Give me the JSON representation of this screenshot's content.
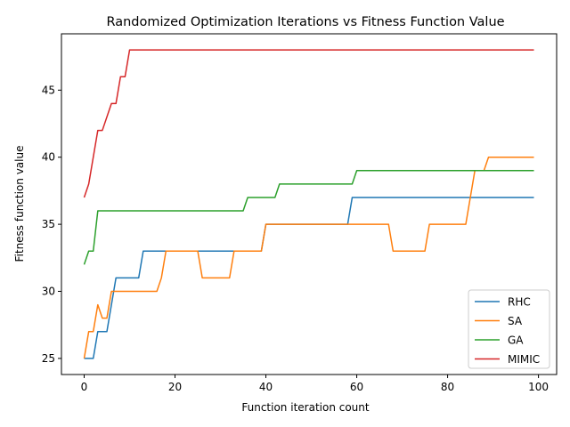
{
  "chart_data": {
    "type": "line",
    "title": "Randomized Optimization Iterations vs Fitness Function Value",
    "xlabel": "Function iteration count",
    "ylabel": "Fitness function value",
    "xlim": [
      -5,
      104
    ],
    "ylim": [
      23.8,
      49.2
    ],
    "xticks": [
      0,
      20,
      40,
      60,
      80,
      100
    ],
    "yticks": [
      25,
      30,
      35,
      40,
      45
    ],
    "grid": false,
    "legend_position": "lower-right",
    "series": [
      {
        "name": "RHC",
        "color": "#1f77b4",
        "points": [
          [
            0,
            25
          ],
          [
            2,
            25
          ],
          [
            3,
            27
          ],
          [
            5,
            27
          ],
          [
            6,
            29
          ],
          [
            7,
            31
          ],
          [
            12,
            31
          ],
          [
            13,
            33
          ],
          [
            39,
            33
          ],
          [
            40,
            35
          ],
          [
            58,
            35
          ],
          [
            59,
            37
          ],
          [
            99,
            37
          ]
        ]
      },
      {
        "name": "SA",
        "color": "#ff7f0e",
        "points": [
          [
            0,
            25
          ],
          [
            1,
            27
          ],
          [
            2,
            27
          ],
          [
            3,
            29
          ],
          [
            4,
            28
          ],
          [
            5,
            28
          ],
          [
            6,
            30
          ],
          [
            16,
            30
          ],
          [
            17,
            31
          ],
          [
            18,
            33
          ],
          [
            25,
            33
          ],
          [
            26,
            31
          ],
          [
            32,
            31
          ],
          [
            33,
            33
          ],
          [
            39,
            33
          ],
          [
            40,
            35
          ],
          [
            67,
            35
          ],
          [
            68,
            33
          ],
          [
            75,
            33
          ],
          [
            76,
            35
          ],
          [
            84,
            35
          ],
          [
            86,
            39
          ],
          [
            88,
            39
          ],
          [
            89,
            40
          ],
          [
            99,
            40
          ]
        ]
      },
      {
        "name": "GA",
        "color": "#2ca02c",
        "points": [
          [
            0,
            32
          ],
          [
            1,
            33
          ],
          [
            2,
            33
          ],
          [
            3,
            36
          ],
          [
            35,
            36
          ],
          [
            36,
            37
          ],
          [
            42,
            37
          ],
          [
            43,
            38
          ],
          [
            59,
            38
          ],
          [
            60,
            39
          ],
          [
            99,
            39
          ]
        ]
      },
      {
        "name": "MIMIC",
        "color": "#d62728",
        "points": [
          [
            0,
            37
          ],
          [
            1,
            38
          ],
          [
            3,
            42
          ],
          [
            4,
            42
          ],
          [
            6,
            44
          ],
          [
            7,
            44
          ],
          [
            8,
            46
          ],
          [
            9,
            46
          ],
          [
            10,
            48
          ],
          [
            99,
            48
          ]
        ]
      }
    ]
  }
}
